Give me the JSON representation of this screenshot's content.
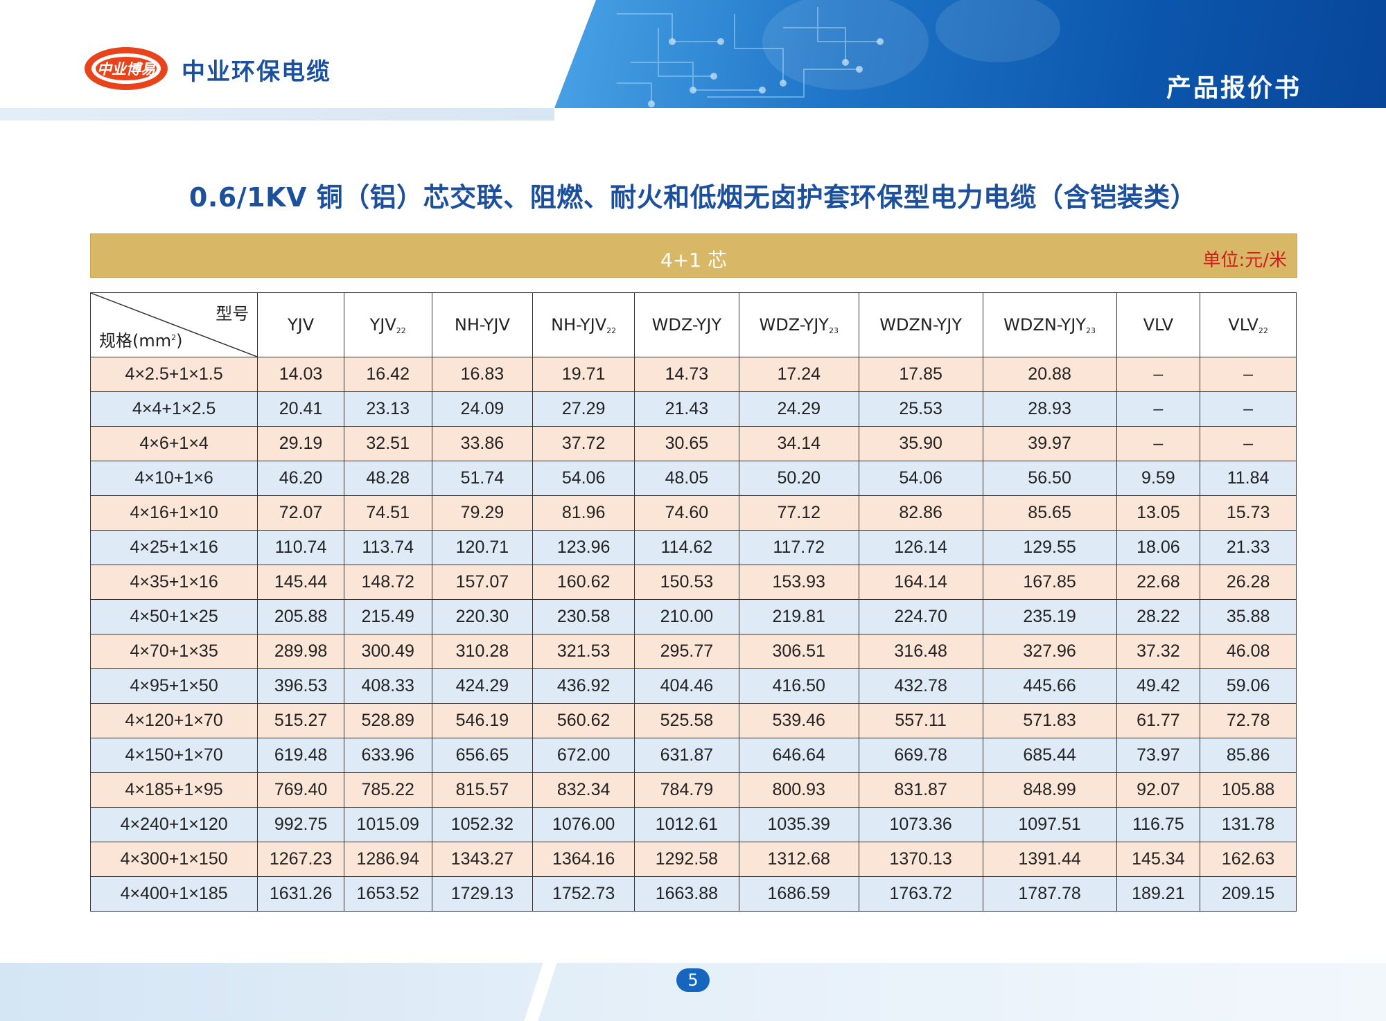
{
  "header": {
    "logo_text": "中业博易",
    "brand_name": "中业环保电缆",
    "doc_title": "产品报价书"
  },
  "title": "0.6/1KV 铜（铝）芯交联、阻燃、耐火和低烟无卤护套环保型电力电缆（含铠装类）",
  "band": {
    "core_label": "4+1 芯",
    "unit": "单位:元/米"
  },
  "table": {
    "corner_top": "型号",
    "corner_bottom": "规格(mm",
    "corner_bottom_sup": "2",
    "corner_bottom_end": ")",
    "columns": [
      {
        "name": "YJV",
        "sub": ""
      },
      {
        "name": "YJV",
        "sub": "22"
      },
      {
        "name": "NH-YJV",
        "sub": ""
      },
      {
        "name": "NH-YJV",
        "sub": "22"
      },
      {
        "name": "WDZ-YJY",
        "sub": ""
      },
      {
        "name": "WDZ-YJY",
        "sub": "23"
      },
      {
        "name": "WDZN-YJY",
        "sub": ""
      },
      {
        "name": "WDZN-YJY",
        "sub": "23"
      },
      {
        "name": "VLV",
        "sub": ""
      },
      {
        "name": "VLV",
        "sub": "22"
      }
    ],
    "rows": [
      {
        "spec": "4×2.5+1×1.5",
        "prices": [
          "14.03",
          "16.42",
          "16.83",
          "19.71",
          "14.73",
          "17.24",
          "17.85",
          "20.88",
          "–",
          "–"
        ]
      },
      {
        "spec": "4×4+1×2.5",
        "prices": [
          "20.41",
          "23.13",
          "24.09",
          "27.29",
          "21.43",
          "24.29",
          "25.53",
          "28.93",
          "–",
          "–"
        ]
      },
      {
        "spec": "4×6+1×4",
        "prices": [
          "29.19",
          "32.51",
          "33.86",
          "37.72",
          "30.65",
          "34.14",
          "35.90",
          "39.97",
          "–",
          "–"
        ]
      },
      {
        "spec": "4×10+1×6",
        "prices": [
          "46.20",
          "48.28",
          "51.74",
          "54.06",
          "48.05",
          "50.20",
          "54.06",
          "56.50",
          "9.59",
          "11.84"
        ]
      },
      {
        "spec": "4×16+1×10",
        "prices": [
          "72.07",
          "74.51",
          "79.29",
          "81.96",
          "74.60",
          "77.12",
          "82.86",
          "85.65",
          "13.05",
          "15.73"
        ]
      },
      {
        "spec": "4×25+1×16",
        "prices": [
          "110.74",
          "113.74",
          "120.71",
          "123.96",
          "114.62",
          "117.72",
          "126.14",
          "129.55",
          "18.06",
          "21.33"
        ]
      },
      {
        "spec": "4×35+1×16",
        "prices": [
          "145.44",
          "148.72",
          "157.07",
          "160.62",
          "150.53",
          "153.93",
          "164.14",
          "167.85",
          "22.68",
          "26.28"
        ]
      },
      {
        "spec": "4×50+1×25",
        "prices": [
          "205.88",
          "215.49",
          "220.30",
          "230.58",
          "210.00",
          "219.81",
          "224.70",
          "235.19",
          "28.22",
          "35.88"
        ]
      },
      {
        "spec": "4×70+1×35",
        "prices": [
          "289.98",
          "300.49",
          "310.28",
          "321.53",
          "295.77",
          "306.51",
          "316.48",
          "327.96",
          "37.32",
          "46.08"
        ]
      },
      {
        "spec": "4×95+1×50",
        "prices": [
          "396.53",
          "408.33",
          "424.29",
          "436.92",
          "404.46",
          "416.50",
          "432.78",
          "445.66",
          "49.42",
          "59.06"
        ]
      },
      {
        "spec": "4×120+1×70",
        "prices": [
          "515.27",
          "528.89",
          "546.19",
          "560.62",
          "525.58",
          "539.46",
          "557.11",
          "571.83",
          "61.77",
          "72.78"
        ]
      },
      {
        "spec": "4×150+1×70",
        "prices": [
          "619.48",
          "633.96",
          "656.65",
          "672.00",
          "631.87",
          "646.64",
          "669.78",
          "685.44",
          "73.97",
          "85.86"
        ]
      },
      {
        "spec": "4×185+1×95",
        "prices": [
          "769.40",
          "785.22",
          "815.57",
          "832.34",
          "784.79",
          "800.93",
          "831.87",
          "848.99",
          "92.07",
          "105.88"
        ]
      },
      {
        "spec": "4×240+1×120",
        "prices": [
          "992.75",
          "1015.09",
          "1052.32",
          "1076.00",
          "1012.61",
          "1035.39",
          "1073.36",
          "1097.51",
          "116.75",
          "131.78"
        ]
      },
      {
        "spec": "4×300+1×150",
        "prices": [
          "1267.23",
          "1286.94",
          "1343.27",
          "1364.16",
          "1292.58",
          "1312.68",
          "1370.13",
          "1391.44",
          "145.34",
          "162.63"
        ]
      },
      {
        "spec": "4×400+1×185",
        "prices": [
          "1631.26",
          "1653.52",
          "1729.13",
          "1752.73",
          "1663.88",
          "1686.59",
          "1763.72",
          "1787.78",
          "189.21",
          "209.15"
        ]
      }
    ]
  },
  "footer": {
    "page_number": "5"
  },
  "colors": {
    "brand_blue": "#1c4f9c",
    "gold": "#d8b766",
    "unit_red": "#d21d1d",
    "row_peach": "#fbe5d6",
    "row_blue": "#deebf7"
  }
}
